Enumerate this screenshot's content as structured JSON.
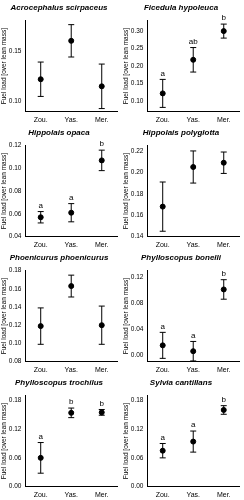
{
  "chart_data": [
    {
      "type": "scatter",
      "title": "Acrocephalus scirpaceus",
      "y_label": "Fuel load [over lean mass]",
      "categories": [
        "Zou.",
        "Yas.",
        "Mer."
      ],
      "values": [
        0.122,
        0.16,
        0.115
      ],
      "errors": [
        0.017,
        0.016,
        0.022
      ],
      "annotations": [
        null,
        null,
        null
      ],
      "color": "#000000",
      "marker": "circle",
      "grid": false,
      "ylim": [
        0.09,
        0.18
      ],
      "yticks": [
        {
          "value": 0.1,
          "label": "0.10"
        },
        {
          "value": 0.15,
          "label": "0.15"
        }
      ]
    },
    {
      "type": "scatter",
      "title": "Ficedula hypoleuca",
      "y_label": "Fuel load [over lean mass]",
      "categories": [
        "Zou.",
        "Yas.",
        "Mer."
      ],
      "values": [
        0.122,
        0.218,
        0.3
      ],
      "errors": [
        0.04,
        0.035,
        0.02
      ],
      "annotations": [
        "a",
        "ab",
        "b"
      ],
      "color": "#000000",
      "marker": "circle",
      "grid": false,
      "ylim": [
        0.07,
        0.33
      ],
      "yticks": [
        {
          "value": 0.1,
          "label": "0.10"
        },
        0.15,
        {
          "value": 0.2,
          "label": "0.20"
        },
        0.25,
        {
          "value": 0.3,
          "label": "0.30"
        }
      ]
    },
    {
      "type": "scatter",
      "title": "Hippolais opaca",
      "y_label": "Fuel load [over lean mass]",
      "categories": [
        "Zou.",
        "Yas.",
        "Mer."
      ],
      "values": [
        0.057,
        0.061,
        0.107
      ],
      "errors": [
        0.005,
        0.008,
        0.009
      ],
      "annotations": [
        "a",
        "a",
        "b"
      ],
      "color": "#000000",
      "marker": "circle",
      "grid": false,
      "ylim": [
        0.04,
        0.12
      ],
      "yticks": [
        0.04,
        0.06,
        0.08,
        {
          "value": 0.1,
          "label": "0.10"
        },
        0.12
      ]
    },
    {
      "type": "scatter",
      "title": "Hippolais polyglotta",
      "y_label": "Fuel load [over lean mass]",
      "categories": [
        "Zou.",
        "Yas.",
        "Mer."
      ],
      "values": [
        0.168,
        0.205,
        0.209
      ],
      "errors": [
        0.023,
        0.015,
        0.01
      ],
      "annotations": [
        null,
        null,
        null
      ],
      "color": "#000000",
      "marker": "circle",
      "grid": false,
      "ylim": [
        0.14,
        0.225
      ],
      "yticks": [
        0.14,
        0.16,
        0.18,
        {
          "value": 0.2,
          "label": "0.20"
        },
        0.22
      ]
    },
    {
      "type": "scatter",
      "title": "Phoenicurus phoenicurus",
      "y_label": "Fuel load [over lean mass]",
      "categories": [
        "Zou.",
        "Yas.",
        "Mer."
      ],
      "values": [
        0.119,
        0.163,
        0.12
      ],
      "errors": [
        0.02,
        0.012,
        0.021
      ],
      "annotations": [
        null,
        null,
        null
      ],
      "color": "#000000",
      "marker": "circle",
      "grid": false,
      "ylim": [
        0.08,
        0.18
      ],
      "yticks": [
        0.08,
        {
          "value": 0.1,
          "label": "0.10"
        },
        0.12,
        0.14,
        0.16,
        0.18
      ]
    },
    {
      "type": "scatter",
      "title": "Phylloscopus bonelli",
      "y_label": "Fuel load [over lean mass]",
      "categories": [
        "Zou.",
        "Yas.",
        "Mer."
      ],
      "values": [
        0.015,
        0.006,
        0.101
      ],
      "errors": [
        0.02,
        0.015,
        0.015
      ],
      "annotations": [
        "a",
        "a",
        "b"
      ],
      "color": "#000000",
      "marker": "circle",
      "grid": false,
      "ylim": [
        -0.01,
        0.13
      ],
      "yticks": [
        {
          "value": 0,
          "label": "0.00"
        },
        0.04,
        0.08,
        0.12
      ]
    },
    {
      "type": "scatter",
      "title": "Phylloscopus trochilus",
      "y_label": "Fuel load [over lean mass]",
      "categories": [
        "Zou.",
        "Yas.",
        "Mer."
      ],
      "values": [
        0.06,
        0.154,
        0.155
      ],
      "errors": [
        0.032,
        0.01,
        0.006
      ],
      "annotations": [
        "a",
        "b",
        "b"
      ],
      "color": "#000000",
      "marker": "circle",
      "grid": false,
      "ylim": [
        0,
        0.19
      ],
      "yticks": [
        {
          "value": 0,
          "label": "0.00"
        },
        0.06,
        0.12,
        0.18
      ]
    },
    {
      "type": "scatter",
      "title": "Sylvia cantillans",
      "y_label": "Fuel load [over lean mass]",
      "categories": [
        "Zou.",
        "Yas.",
        "Mer."
      ],
      "values": [
        0.075,
        0.094,
        0.16
      ],
      "errors": [
        0.015,
        0.022,
        0.009
      ],
      "annotations": [
        "a",
        "a",
        "b"
      ],
      "color": "#000000",
      "marker": "circle",
      "grid": false,
      "ylim": [
        0,
        0.19
      ],
      "yticks": [
        {
          "value": 0,
          "label": "0.00"
        },
        0.06,
        0.12,
        0.18
      ]
    }
  ]
}
